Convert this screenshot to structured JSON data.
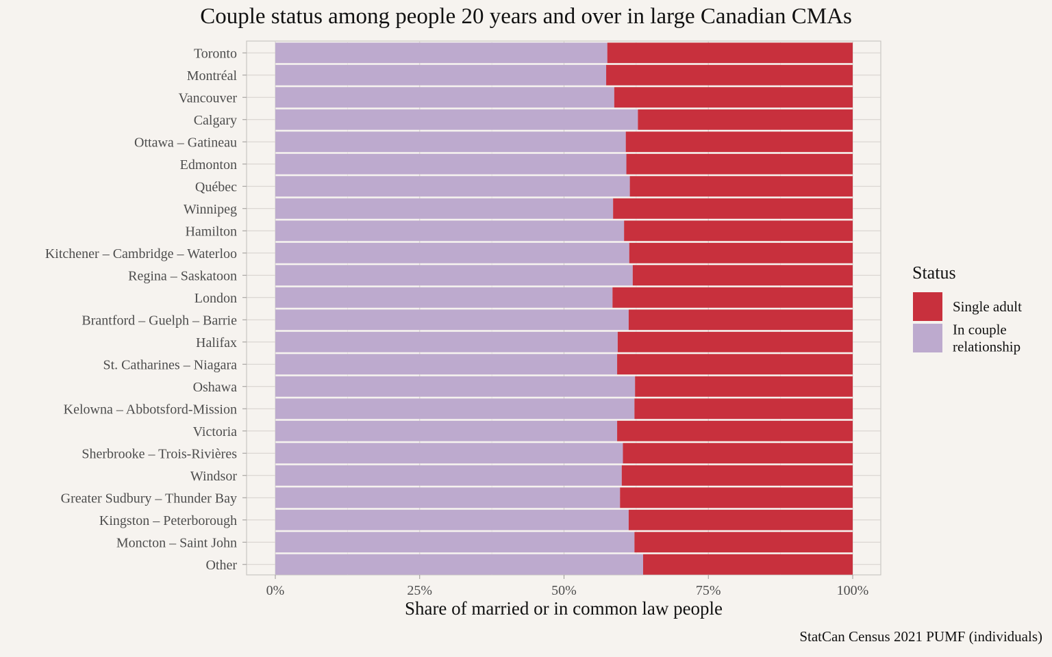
{
  "chart_data": {
    "type": "bar",
    "orientation": "horizontal",
    "stacked": true,
    "title": "Couple status among people 20 years and over in large Canadian CMAs",
    "xlabel": "Share of married or in common law people",
    "ylabel": "",
    "caption": "StatCan Census 2021 PUMF (individuals)",
    "xlim": [
      0,
      1
    ],
    "x_ticks": [
      "0%",
      "25%",
      "50%",
      "75%",
      "100%"
    ],
    "x_tick_values": [
      0,
      0.25,
      0.5,
      0.75,
      1
    ],
    "grid": true,
    "legend": {
      "title": "Status",
      "placement": "right",
      "entries": [
        {
          "label_lines": [
            "Single adult"
          ],
          "color": "#c8303d"
        },
        {
          "label_lines": [
            "In couple",
            "relationship"
          ],
          "color": "#bdaace"
        }
      ]
    },
    "categories": [
      "Toronto",
      "Montréal",
      "Vancouver",
      "Calgary",
      "Ottawa – Gatineau",
      "Edmonton",
      "Québec",
      "Winnipeg",
      "Hamilton",
      "Kitchener – Cambridge – Waterloo",
      "Regina – Saskatoon",
      "London",
      "Brantford – Guelph – Barrie",
      "Halifax",
      "St. Catharines – Niagara",
      "Oshawa",
      "Kelowna – Abbotsford-Mission",
      "Victoria",
      "Sherbrooke – Trois-Rivières",
      "Windsor",
      "Greater Sudbury – Thunder Bay",
      "Kingston – Peterborough",
      "Moncton – Saint John",
      "Other"
    ],
    "series": [
      {
        "name": "In couple relationship",
        "color": "#bdaace",
        "values": [
          0.575,
          0.573,
          0.587,
          0.628,
          0.607,
          0.608,
          0.614,
          0.585,
          0.604,
          0.613,
          0.619,
          0.584,
          0.612,
          0.593,
          0.592,
          0.623,
          0.622,
          0.592,
          0.602,
          0.6,
          0.597,
          0.612,
          0.622,
          0.637
        ]
      },
      {
        "name": "Single adult",
        "color": "#c8303d",
        "values": [
          0.425,
          0.427,
          0.413,
          0.372,
          0.393,
          0.392,
          0.386,
          0.415,
          0.396,
          0.387,
          0.381,
          0.416,
          0.388,
          0.407,
          0.408,
          0.377,
          0.378,
          0.408,
          0.398,
          0.4,
          0.403,
          0.388,
          0.378,
          0.363
        ]
      }
    ]
  }
}
